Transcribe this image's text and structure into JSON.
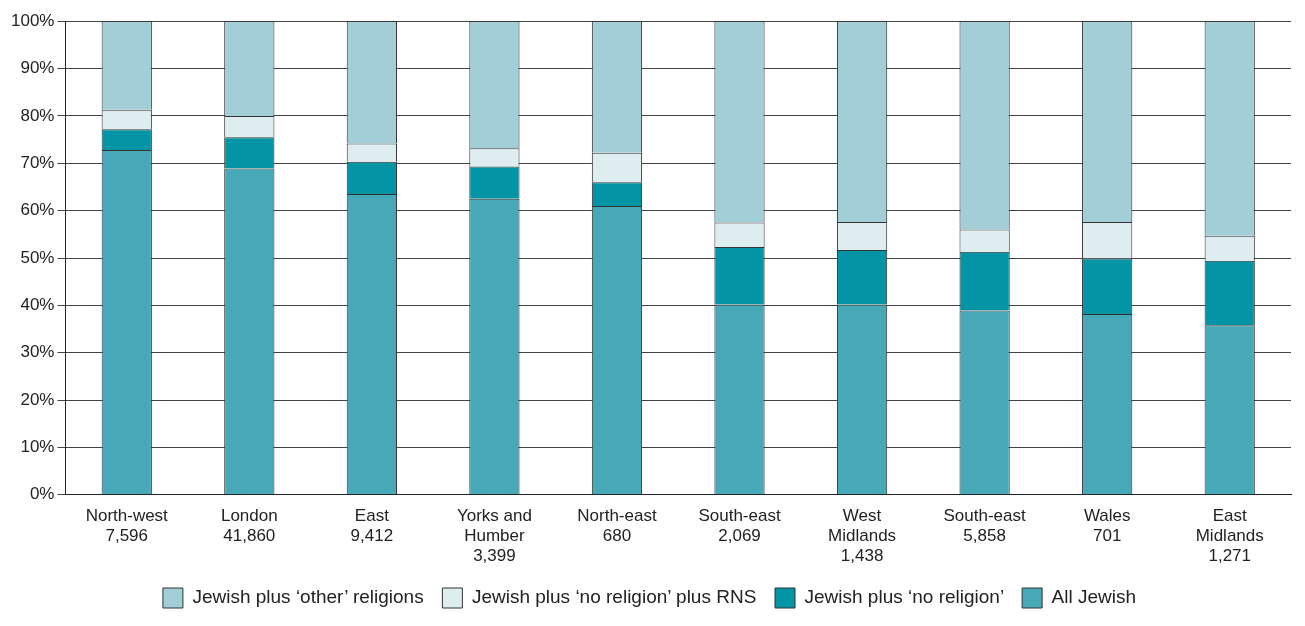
{
  "chart_data": {
    "type": "bar",
    "stacked": true,
    "categories": [
      "North-west\n7,596",
      "London\n41,860",
      "East\n9,412",
      "Yorks and\nHumber\n3,399",
      "North-east\n680",
      "South-east\n2,069",
      "West\nMidlands\n1,438",
      "South-east\n5,858",
      "Wales\n701",
      "East\nMidlands\n1,271"
    ],
    "series": [
      {
        "name": "All Jewish",
        "color": "#47a8b8",
        "values": [
          72.8,
          68.9,
          63.5,
          62.5,
          61,
          40.2,
          40.2,
          38.9,
          38.2,
          35.8
        ]
      },
      {
        "name": "Jewish plus ‘no religion’",
        "color": "#0394a5",
        "values": [
          4.4,
          6.6,
          6.8,
          6.8,
          5,
          12.1,
          11.5,
          12.4,
          11.7,
          13.6
        ]
      },
      {
        "name": "Jewish plus ‘no religion’ plus RNS",
        "color": "#ddedf0",
        "values": [
          4.1,
          4.5,
          3.9,
          3.9,
          6.2,
          5.2,
          5.9,
          4.7,
          7.7,
          5.3
        ]
      },
      {
        "name": "Jewish plus ‘other’ religions",
        "color": "#a1ced7",
        "values": [
          18.7,
          20,
          25.8,
          26.8,
          27.8,
          42.5,
          42.4,
          44,
          42.4,
          45.3
        ]
      }
    ],
    "ylim": [
      0,
      100
    ],
    "yticks": [
      {
        "value": 0,
        "label": "0%"
      },
      {
        "value": 10,
        "label": "10%"
      },
      {
        "value": 20,
        "label": "20%"
      },
      {
        "value": 30,
        "label": "30%"
      },
      {
        "value": 40,
        "label": "40%"
      },
      {
        "value": 50,
        "label": "50%"
      },
      {
        "value": 60,
        "label": "60%"
      },
      {
        "value": 70,
        "label": "70%"
      },
      {
        "value": 80,
        "label": "80%"
      },
      {
        "value": 90,
        "label": "90%"
      },
      {
        "value": 100,
        "label": "100%"
      }
    ],
    "grid": "y",
    "legend": "bottom"
  }
}
